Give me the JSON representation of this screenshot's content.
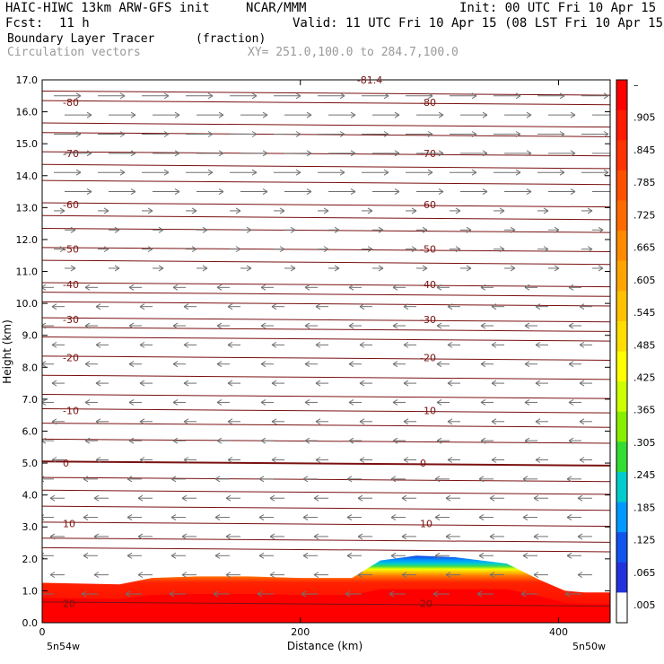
{
  "header": {
    "model_title": "HAIC-HIWC 13km ARW-GFS init",
    "org": "NCAR/MMM",
    "init": "Init: 00 UTC Fri 10 Apr 15",
    "fcst_label": "Fcst:",
    "fcst_value": "11 h",
    "valid": "Valid: 11 UTC Fri 10 Apr 15 (08 LST Fri 10 Apr 15)",
    "field_name": "Boundary Layer Tracer",
    "field_units": "(fraction)",
    "vector_name": "Circulation vectors",
    "cross_section": "XY= 251.0,100.0 to 284.7,100.0"
  },
  "colors": {
    "contour": "#7a1010",
    "vector": "#707070",
    "plot_frame": "#000000"
  },
  "chart_data": {
    "type": "heatmap",
    "ylabel": "Height (km)",
    "xlabel": "Distance (km)",
    "xlim": [
      0,
      440
    ],
    "ylim": [
      0,
      17
    ],
    "x_ticks": [
      "0",
      "200",
      "400"
    ],
    "x_tick_values": [
      0,
      200,
      400
    ],
    "y_ticks": [
      "0.0",
      "1.0",
      "2.0",
      "3.0",
      "4.0",
      "5.0",
      "6.0",
      "7.0",
      "8.0",
      "9.0",
      "10.0",
      "11.0",
      "12.0",
      "13.0",
      "14.0",
      "15.0",
      "16.0",
      "17.0"
    ],
    "x_endpoint_left": "5n54w",
    "x_endpoint_right": "5n50w",
    "colorbar": {
      "labels": [
        "–",
        ".905",
        ".845",
        ".785",
        ".725",
        ".665",
        ".605",
        ".545",
        ".485",
        ".425",
        ".365",
        ".305",
        ".245",
        ".185",
        ".125",
        ".065",
        ".005"
      ],
      "colors": [
        "#ff0000",
        "#ff1a00",
        "#ff3300",
        "#ff5000",
        "#ff6a00",
        "#ff8a00",
        "#ffa500",
        "#ffc000",
        "#ffdd00",
        "#ffff00",
        "#ccff00",
        "#88ee00",
        "#33dd33",
        "#00cccc",
        "#0099ff",
        "#1155ee",
        "#2233dd",
        "#ffffff"
      ]
    },
    "tracer_top_km": [
      [
        0,
        1.25
      ],
      [
        60,
        1.2
      ],
      [
        85,
        1.4
      ],
      [
        120,
        1.45
      ],
      [
        160,
        1.45
      ],
      [
        200,
        1.4
      ],
      [
        240,
        1.4
      ],
      [
        262,
        1.95
      ],
      [
        290,
        2.1
      ],
      [
        320,
        2.05
      ],
      [
        360,
        1.85
      ],
      [
        385,
        1.35
      ],
      [
        405,
        1.0
      ],
      [
        420,
        0.95
      ],
      [
        440,
        0.95
      ]
    ],
    "temperature_contours": [
      {
        "label": "-80",
        "km": 16.3
      },
      {
        "label": "-70",
        "km": 14.7
      },
      {
        "label": "-60",
        "km": 13.1
      },
      {
        "label": "-50",
        "km": 11.7
      },
      {
        "label": "-40",
        "km": 10.6
      },
      {
        "label": "-30",
        "km": 9.5
      },
      {
        "label": "-20",
        "km": 8.3
      },
      {
        "label": "-10",
        "km": 6.65
      },
      {
        "label": "0",
        "km": 5.0
      },
      {
        "label": "10",
        "km": 3.1
      },
      {
        "label": "20",
        "km": 0.6
      }
    ],
    "top_contour_label": "-81.4"
  }
}
